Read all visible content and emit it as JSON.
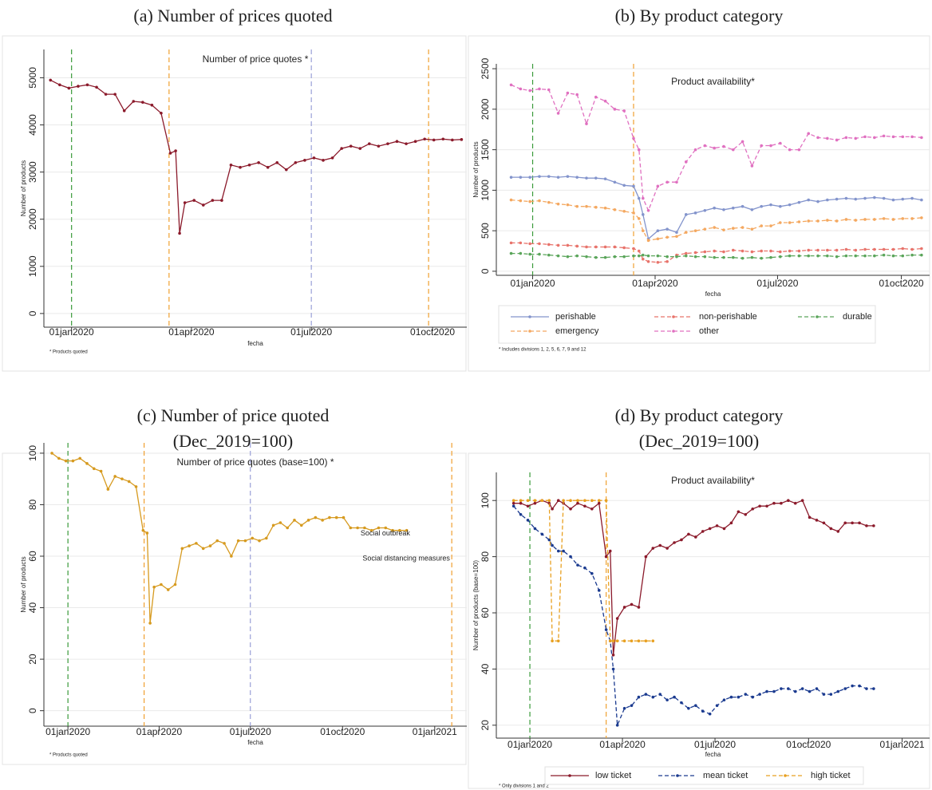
{
  "chart_data": [
    {
      "type": "line",
      "caption": [
        "(a) Number of prices quoted"
      ],
      "title": "Number of price quotes *",
      "y_label": "Number of products",
      "x_label": "fecha",
      "note": "* Products quoted",
      "x": [
        "2019-12-16",
        "2019-12-23",
        "2019-12-30",
        "2020-01-06",
        "2020-01-13",
        "2020-01-20",
        "2020-01-27",
        "2020-02-03",
        "2020-02-10",
        "2020-02-17",
        "2020-02-24",
        "2020-03-02",
        "2020-03-09",
        "2020-03-16",
        "2020-03-20",
        "2020-03-23",
        "2020-03-27",
        "2020-04-03",
        "2020-04-10",
        "2020-04-17",
        "2020-04-24",
        "2020-05-01",
        "2020-05-08",
        "2020-05-15",
        "2020-05-22",
        "2020-05-29",
        "2020-06-05",
        "2020-06-12",
        "2020-06-19",
        "2020-06-26",
        "2020-07-03",
        "2020-07-10",
        "2020-07-17",
        "2020-07-24",
        "2020-07-31",
        "2020-08-07",
        "2020-08-14",
        "2020-08-21",
        "2020-08-28",
        "2020-09-04",
        "2020-09-11",
        "2020-09-18",
        "2020-09-25",
        "2020-10-02",
        "2020-10-09",
        "2020-10-16",
        "2020-10-23"
      ],
      "values": [
        4950,
        4850,
        4780,
        4820,
        4850,
        4800,
        4650,
        4650,
        4300,
        4500,
        4480,
        4420,
        4250,
        3400,
        3450,
        1700,
        2350,
        2400,
        2300,
        2400,
        2400,
        3150,
        3100,
        3150,
        3200,
        3100,
        3200,
        3050,
        3200,
        3250,
        3300,
        3250,
        3300,
        3500,
        3550,
        3500,
        3600,
        3550,
        3600,
        3650,
        3600,
        3650,
        3700,
        3680,
        3700,
        3680,
        3690
      ],
      "color": "#8b1a2b",
      "xlim": [
        "2019-12-11",
        "2020-10-27"
      ],
      "xticks": [
        {
          "value": "2020-01-01",
          "label": "01jan2020"
        },
        {
          "value": "2020-04-01",
          "label": "01apr2020"
        },
        {
          "value": "2020-07-01",
          "label": "01jul2020"
        },
        {
          "value": "2020-10-01",
          "label": "01oct2020"
        }
      ],
      "ylim": [
        -290,
        5600
      ],
      "yticks": [
        0,
        1000,
        2000,
        3000,
        4000,
        5000
      ],
      "grid": true,
      "vlines": [
        {
          "x": "2020-01-01",
          "color": "#3a9a3a"
        },
        {
          "x": "2020-03-15",
          "color": "#f0a030"
        },
        {
          "x": "2020-07-01",
          "color": "#9aa0d8"
        },
        {
          "x": "2020-09-28",
          "color": "#f0a030"
        }
      ]
    },
    {
      "type": "line",
      "caption": [
        "(b) By product category"
      ],
      "title": "Product availability*",
      "y_label": "Number of products",
      "x_label": "fecha",
      "note": "* Includes divisions 1, 2, 5, 6, 7, 9 and 12",
      "x": [
        "2019-12-16",
        "2019-12-23",
        "2019-12-30",
        "2020-01-06",
        "2020-01-13",
        "2020-01-20",
        "2020-01-27",
        "2020-02-03",
        "2020-02-10",
        "2020-02-17",
        "2020-02-24",
        "2020-03-02",
        "2020-03-09",
        "2020-03-16",
        "2020-03-20",
        "2020-03-23",
        "2020-03-27",
        "2020-04-03",
        "2020-04-10",
        "2020-04-17",
        "2020-04-24",
        "2020-05-01",
        "2020-05-08",
        "2020-05-15",
        "2020-05-22",
        "2020-05-29",
        "2020-06-05",
        "2020-06-12",
        "2020-06-19",
        "2020-06-26",
        "2020-07-03",
        "2020-07-10",
        "2020-07-17",
        "2020-07-24",
        "2020-07-31",
        "2020-08-07",
        "2020-08-14",
        "2020-08-21",
        "2020-08-28",
        "2020-09-04",
        "2020-09-11",
        "2020-09-18",
        "2020-09-25",
        "2020-10-02",
        "2020-10-09",
        "2020-10-16"
      ],
      "series": [
        {
          "name": "perishable",
          "color": "#8394cc",
          "dashed": false,
          "values": [
            1160,
            1160,
            1160,
            1170,
            1170,
            1160,
            1170,
            1160,
            1150,
            1150,
            1140,
            1100,
            1060,
            1050,
            900,
            700,
            400,
            500,
            520,
            480,
            700,
            720,
            750,
            780,
            760,
            780,
            800,
            760,
            800,
            820,
            800,
            820,
            850,
            880,
            860,
            880,
            890,
            900,
            890,
            900,
            910,
            900,
            880,
            890,
            900,
            880
          ]
        },
        {
          "name": "non-perishable",
          "color": "#e8736b",
          "dashed": true,
          "values": [
            350,
            350,
            340,
            340,
            330,
            320,
            320,
            310,
            300,
            300,
            300,
            300,
            290,
            280,
            250,
            150,
            120,
            110,
            120,
            200,
            220,
            230,
            240,
            250,
            240,
            260,
            250,
            240,
            250,
            250,
            240,
            250,
            250,
            260,
            260,
            260,
            260,
            270,
            260,
            270,
            270,
            270,
            270,
            280,
            270,
            280
          ]
        },
        {
          "name": "durable",
          "color": "#5aa55a",
          "dashed": true,
          "values": [
            220,
            220,
            210,
            210,
            200,
            190,
            180,
            190,
            180,
            170,
            170,
            180,
            180,
            190,
            190,
            200,
            190,
            190,
            180,
            180,
            190,
            180,
            180,
            170,
            170,
            170,
            160,
            170,
            160,
            170,
            180,
            190,
            190,
            190,
            190,
            190,
            180,
            190,
            190,
            190,
            190,
            200,
            190,
            190,
            200,
            200
          ]
        },
        {
          "name": "emergency",
          "color": "#f4a860",
          "dashed": true,
          "values": [
            880,
            870,
            860,
            870,
            850,
            830,
            820,
            800,
            800,
            790,
            780,
            760,
            740,
            720,
            650,
            500,
            380,
            400,
            420,
            430,
            480,
            500,
            520,
            540,
            510,
            530,
            540,
            520,
            560,
            560,
            600,
            600,
            610,
            620,
            620,
            630,
            620,
            640,
            630,
            640,
            640,
            650,
            640,
            650,
            650,
            660
          ]
        },
        {
          "name": "other",
          "color": "#e070c0",
          "dashed": true,
          "values": [
            2300,
            2250,
            2230,
            2250,
            2240,
            1950,
            2200,
            2180,
            1820,
            2150,
            2100,
            2000,
            1980,
            1640,
            1500,
            900,
            750,
            1050,
            1100,
            1100,
            1350,
            1500,
            1550,
            1520,
            1540,
            1500,
            1600,
            1300,
            1550,
            1550,
            1580,
            1500,
            1500,
            1700,
            1650,
            1640,
            1620,
            1650,
            1640,
            1660,
            1650,
            1670,
            1660,
            1660,
            1660,
            1650
          ]
        }
      ],
      "xlim": [
        "2019-12-05",
        "2020-10-22"
      ],
      "xticks": [
        {
          "value": "2020-01-01",
          "label": "01jan2020"
        },
        {
          "value": "2020-04-01",
          "label": "01apr2020"
        },
        {
          "value": "2020-07-01",
          "label": "01jul2020"
        },
        {
          "value": "2020-10-01",
          "label": "01oct2020"
        }
      ],
      "ylim": [
        -50,
        2560
      ],
      "yticks": [
        0,
        500,
        1000,
        1500,
        2000,
        2500
      ],
      "grid": true,
      "vlines": [
        {
          "x": "2020-01-01",
          "color": "#3a9a3a"
        },
        {
          "x": "2020-03-16",
          "color": "#f0a030"
        }
      ]
    },
    {
      "type": "line",
      "caption": [
        "(c) Number of price quoted",
        "(Dec_2019=100)"
      ],
      "title": "Number of price quotes (base=100) *",
      "y_label": "Number of products",
      "x_label": "fecha",
      "note": "* Products quoted",
      "x": [
        "2019-12-16",
        "2019-12-23",
        "2019-12-30",
        "2020-01-06",
        "2020-01-13",
        "2020-01-20",
        "2020-01-27",
        "2020-02-03",
        "2020-02-10",
        "2020-02-17",
        "2020-02-24",
        "2020-03-02",
        "2020-03-09",
        "2020-03-16",
        "2020-03-20",
        "2020-03-23",
        "2020-03-27",
        "2020-04-03",
        "2020-04-10",
        "2020-04-17",
        "2020-04-24",
        "2020-05-01",
        "2020-05-08",
        "2020-05-15",
        "2020-05-22",
        "2020-05-29",
        "2020-06-05",
        "2020-06-12",
        "2020-06-19",
        "2020-06-26",
        "2020-07-03",
        "2020-07-10",
        "2020-07-17",
        "2020-07-24",
        "2020-07-31",
        "2020-08-07",
        "2020-08-14",
        "2020-08-21",
        "2020-08-28",
        "2020-09-04",
        "2020-09-11",
        "2020-09-18",
        "2020-09-25",
        "2020-10-02",
        "2020-10-09",
        "2020-10-16",
        "2020-10-23",
        "2020-10-30",
        "2020-11-06",
        "2020-11-13",
        "2020-11-20",
        "2020-11-27",
        "2020-12-04"
      ],
      "values": [
        100,
        98,
        97,
        97,
        98,
        96,
        94,
        93,
        86,
        91,
        90,
        89,
        87,
        70,
        69,
        34,
        48,
        49,
        47,
        49,
        63,
        64,
        65,
        63,
        64,
        66,
        65,
        60,
        66,
        66,
        67,
        66,
        67,
        72,
        73,
        71,
        74,
        72,
        74,
        75,
        74,
        75,
        75,
        75,
        71,
        71,
        71,
        70,
        71,
        71,
        70,
        70,
        70
      ],
      "color": "#d69a1f",
      "xlim": [
        "2019-12-08",
        "2021-02-02"
      ],
      "xticks": [
        {
          "value": "2020-01-01",
          "label": "01jan2020"
        },
        {
          "value": "2020-04-01",
          "label": "01apr2020"
        },
        {
          "value": "2020-07-01",
          "label": "01jul2020"
        },
        {
          "value": "2020-10-01",
          "label": "01oct2020"
        },
        {
          "value": "2021-01-01",
          "label": "01jan2021"
        }
      ],
      "ylim": [
        -6,
        104
      ],
      "yticks": [
        0,
        20,
        40,
        60,
        80,
        100
      ],
      "grid": true,
      "vlines": [
        {
          "x": "2020-01-01",
          "color": "#3a9a3a"
        },
        {
          "x": "2020-03-17",
          "color": "#f0a030"
        },
        {
          "x": "2020-07-01",
          "color": "#9aa0d8"
        },
        {
          "x": "2021-01-18",
          "color": "#f0a030"
        }
      ],
      "annotations": [
        {
          "text": "Social outbreak",
          "x": "2020-10-19",
          "y": 68.8
        },
        {
          "text": "Social distancing measures",
          "x": "2020-10-21",
          "y": 59
        }
      ]
    },
    {
      "type": "line",
      "caption": [
        "(d) By product category",
        "(Dec_2019=100)"
      ],
      "title": "Product availability*",
      "y_label": "Number of products (base=100)",
      "x_label": "fecha",
      "note": "* Only divisions 1 and 2",
      "x": [
        "2019-12-16",
        "2019-12-23",
        "2019-12-30",
        "2020-01-06",
        "2020-01-13",
        "2020-01-20",
        "2020-01-23",
        "2020-01-29",
        "2020-02-03",
        "2020-02-10",
        "2020-02-17",
        "2020-02-24",
        "2020-03-02",
        "2020-03-09",
        "2020-03-16",
        "2020-03-20",
        "2020-03-23",
        "2020-03-27",
        "2020-04-03",
        "2020-04-10",
        "2020-04-17",
        "2020-04-24",
        "2020-05-01",
        "2020-05-08",
        "2020-05-15",
        "2020-05-22",
        "2020-05-29",
        "2020-06-05",
        "2020-06-12",
        "2020-06-19",
        "2020-06-26",
        "2020-07-03",
        "2020-07-10",
        "2020-07-17",
        "2020-07-24",
        "2020-07-31",
        "2020-08-07",
        "2020-08-14",
        "2020-08-21",
        "2020-08-28",
        "2020-09-04",
        "2020-09-11",
        "2020-09-18",
        "2020-09-25",
        "2020-10-02",
        "2020-10-09",
        "2020-10-16",
        "2020-10-23",
        "2020-10-30",
        "2020-11-06",
        "2020-11-13",
        "2020-11-20",
        "2020-11-27",
        "2020-12-04"
      ],
      "series": [
        {
          "name": "low ticket",
          "color": "#8b1a2b",
          "dashed": false,
          "values": [
            99,
            99,
            98,
            99,
            100,
            99,
            97,
            100,
            99,
            97,
            99,
            98,
            97,
            99,
            80,
            82,
            45,
            58,
            62,
            63,
            62,
            80,
            83,
            84,
            83,
            85,
            86,
            88,
            87,
            89,
            90,
            91,
            90,
            92,
            96,
            95,
            97,
            98,
            98,
            99,
            99,
            100,
            99,
            100,
            94,
            93,
            92,
            90,
            89,
            92,
            92,
            92,
            91,
            91
          ]
        },
        {
          "name": "mean ticket",
          "color": "#1a3a8f",
          "dashed": true,
          "values": [
            98,
            95,
            93,
            90,
            88,
            86,
            84,
            82,
            82,
            80,
            77,
            76,
            74,
            68,
            54,
            50,
            40,
            20,
            26,
            27,
            30,
            31,
            30,
            31,
            29,
            30,
            28,
            26,
            27,
            25,
            24,
            27,
            29,
            30,
            30,
            31,
            30,
            31,
            32,
            32,
            33,
            33,
            32,
            33,
            32,
            33,
            31,
            31,
            32,
            33,
            34,
            34,
            33,
            33
          ]
        },
        {
          "name": "high ticket",
          "color": "#e8a020",
          "dashed": true,
          "values": [
            100,
            100,
            100,
            100,
            100,
            100,
            50,
            50,
            100,
            100,
            100,
            100,
            100,
            100,
            100,
            50,
            50,
            50,
            50,
            50,
            50,
            50,
            50,
            null,
            null,
            null,
            null,
            null,
            null,
            null,
            null,
            null,
            null,
            null,
            null,
            null,
            null,
            null,
            null,
            null,
            null,
            null,
            null,
            null,
            null,
            null,
            null,
            null,
            null,
            null,
            null,
            null,
            null,
            null
          ]
        }
      ],
      "xlim": [
        "2019-11-29",
        "2021-01-28"
      ],
      "xticks": [
        {
          "value": "2020-01-01",
          "label": "01jan2020"
        },
        {
          "value": "2020-04-01",
          "label": "01apr2020"
        },
        {
          "value": "2020-07-01",
          "label": "01jul2020"
        },
        {
          "value": "2020-10-01",
          "label": "01oct2020"
        },
        {
          "value": "2021-01-01",
          "label": "01jan2021"
        }
      ],
      "ylim": [
        15.4,
        110
      ],
      "yticks": [
        20,
        40,
        60,
        80,
        100
      ],
      "grid": true,
      "vlines": [
        {
          "x": "2020-01-01",
          "color": "#3a9a3a"
        },
        {
          "x": "2020-03-16",
          "color": "#f0a030"
        }
      ]
    }
  ]
}
